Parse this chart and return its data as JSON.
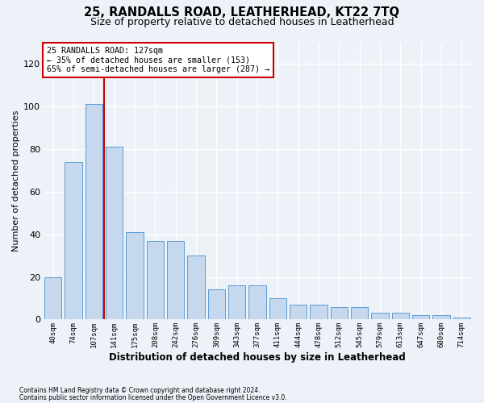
{
  "title": "25, RANDALLS ROAD, LEATHERHEAD, KT22 7TQ",
  "subtitle": "Size of property relative to detached houses in Leatherhead",
  "xlabel": "Distribution of detached houses by size in Leatherhead",
  "ylabel": "Number of detached properties",
  "categories": [
    "40sqm",
    "74sqm",
    "107sqm",
    "141sqm",
    "175sqm",
    "208sqm",
    "242sqm",
    "276sqm",
    "309sqm",
    "343sqm",
    "377sqm",
    "411sqm",
    "444sqm",
    "478sqm",
    "512sqm",
    "545sqm",
    "579sqm",
    "613sqm",
    "647sqm",
    "680sqm",
    "714sqm"
  ],
  "bar_values": [
    20,
    74,
    101,
    81,
    41,
    37,
    37,
    30,
    14,
    16,
    16,
    10,
    7,
    7,
    6,
    6,
    3,
    3,
    2,
    2,
    1
  ],
  "ylim": [
    0,
    130
  ],
  "yticks": [
    0,
    20,
    40,
    60,
    80,
    100,
    120
  ],
  "bar_color": "#c5d8ed",
  "bar_edge_color": "#5b9bd5",
  "vline_color": "#cc0000",
  "annotation_text": "25 RANDALLS ROAD: 127sqm\n← 35% of detached houses are smaller (153)\n65% of semi-detached houses are larger (287) →",
  "annotation_box_color": "white",
  "annotation_box_edge_color": "#cc0000",
  "footnote1": "Contains HM Land Registry data © Crown copyright and database right 2024.",
  "footnote2": "Contains public sector information licensed under the Open Government Licence v3.0.",
  "background_color": "#edf2f9",
  "title_fontsize": 10.5,
  "subtitle_fontsize": 9,
  "xlabel_fontsize": 8.5,
  "ylabel_fontsize": 8
}
